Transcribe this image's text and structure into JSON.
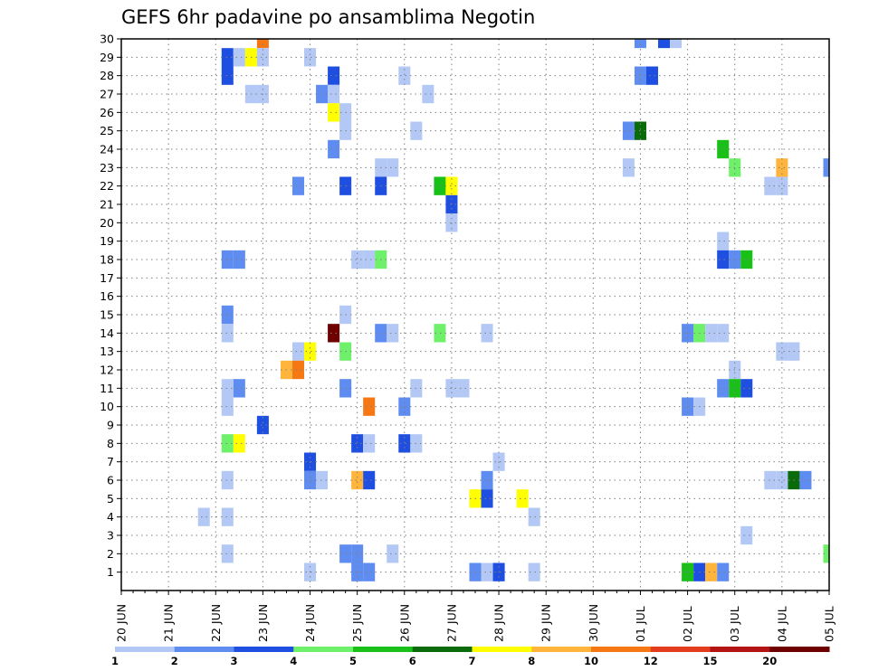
{
  "chart_data": {
    "type": "heatmap",
    "title": "GEFS 6hr padavine po ansamblima Negotin",
    "xlabel": "",
    "ylabel": "",
    "x_tick_labels": [
      "20 JUN",
      "21 JUN",
      "22 JUN",
      "23 JUN",
      "24 JUN",
      "25 JUN",
      "26 JUN",
      "27 JUN",
      "28 JUN",
      "29 JUN",
      "30 JUN",
      "01 JUL",
      "02 JUL",
      "03 JUL",
      "04 JUL",
      "05 JUL"
    ],
    "y_tick_labels": [
      "1",
      "2",
      "3",
      "4",
      "5",
      "6",
      "7",
      "8",
      "9",
      "10",
      "11",
      "12",
      "13",
      "14",
      "15",
      "16",
      "17",
      "18",
      "19",
      "20",
      "21",
      "22",
      "23",
      "24",
      "25",
      "26",
      "27",
      "28",
      "29",
      "30"
    ],
    "ylim": [
      0,
      30
    ],
    "xlim": [
      0,
      60
    ],
    "x_unit": "6-hour steps from 20 JUN 00Z",
    "grid": true,
    "colorbar": {
      "tick_labels": [
        "1",
        "2",
        "3",
        "4",
        "5",
        "6",
        "7",
        "8",
        "10",
        "12",
        "15",
        "20"
      ],
      "colors": [
        "#b4c8f5",
        "#5f8cf0",
        "#1f4fe0",
        "#6ef06a",
        "#18c018",
        "#0a6b0a",
        "#ffff00",
        "#ffb43c",
        "#f57814",
        "#e63c1e",
        "#b41414",
        "#6e0000"
      ]
    },
    "cells": [
      [
        12,
        30,
        "#f57814"
      ],
      [
        44,
        30,
        "#5f8cf0"
      ],
      [
        46,
        30,
        "#1f4fe0"
      ],
      [
        47,
        30,
        "#b4c8f5"
      ],
      [
        9,
        29,
        "#1f4fe0"
      ],
      [
        10,
        29,
        "#b4c8f5"
      ],
      [
        11,
        29,
        "#ffff00"
      ],
      [
        12,
        29,
        "#b4c8f5"
      ],
      [
        16,
        29,
        "#b4c8f5"
      ],
      [
        9,
        28,
        "#1f4fe0"
      ],
      [
        18,
        28,
        "#1f4fe0"
      ],
      [
        24,
        28,
        "#b4c8f5"
      ],
      [
        44,
        28,
        "#5f8cf0"
      ],
      [
        45,
        28,
        "#1f4fe0"
      ],
      [
        11,
        27,
        "#b4c8f5"
      ],
      [
        12,
        27,
        "#b4c8f5"
      ],
      [
        17,
        27,
        "#5f8cf0"
      ],
      [
        18,
        27,
        "#b4c8f5"
      ],
      [
        26,
        27,
        "#b4c8f5"
      ],
      [
        18,
        26,
        "#ffff00"
      ],
      [
        19,
        26,
        "#b4c8f5"
      ],
      [
        19,
        25,
        "#b4c8f5"
      ],
      [
        25,
        25,
        "#b4c8f5"
      ],
      [
        43,
        25,
        "#5f8cf0"
      ],
      [
        44,
        25,
        "#0a6b0a"
      ],
      [
        18,
        24,
        "#5f8cf0"
      ],
      [
        51,
        24,
        "#18c018"
      ],
      [
        22,
        23,
        "#b4c8f5"
      ],
      [
        23,
        23,
        "#b4c8f5"
      ],
      [
        43,
        23,
        "#b4c8f5"
      ],
      [
        52,
        23,
        "#6ef06a"
      ],
      [
        56,
        23,
        "#ffb43c"
      ],
      [
        60,
        23,
        "#5f8cf0"
      ],
      [
        15,
        22,
        "#5f8cf0"
      ],
      [
        19,
        22,
        "#1f4fe0"
      ],
      [
        22,
        22,
        "#1f4fe0"
      ],
      [
        27,
        22,
        "#18c018"
      ],
      [
        28,
        22,
        "#ffff00"
      ],
      [
        55,
        22,
        "#b4c8f5"
      ],
      [
        56,
        22,
        "#b4c8f5"
      ],
      [
        28,
        21,
        "#1f4fe0"
      ],
      [
        28,
        20,
        "#b4c8f5"
      ],
      [
        51,
        19,
        "#b4c8f5"
      ],
      [
        9,
        18,
        "#5f8cf0"
      ],
      [
        10,
        18,
        "#5f8cf0"
      ],
      [
        20,
        18,
        "#b4c8f5"
      ],
      [
        21,
        18,
        "#b4c8f5"
      ],
      [
        22,
        18,
        "#6ef06a"
      ],
      [
        51,
        18,
        "#1f4fe0"
      ],
      [
        52,
        18,
        "#5f8cf0"
      ],
      [
        53,
        18,
        "#18c018"
      ],
      [
        9,
        15,
        "#5f8cf0"
      ],
      [
        19,
        15,
        "#b4c8f5"
      ],
      [
        9,
        14,
        "#b4c8f5"
      ],
      [
        18,
        14,
        "#6e0000"
      ],
      [
        22,
        14,
        "#5f8cf0"
      ],
      [
        23,
        14,
        "#b4c8f5"
      ],
      [
        27,
        14,
        "#6ef06a"
      ],
      [
        31,
        14,
        "#b4c8f5"
      ],
      [
        48,
        14,
        "#5f8cf0"
      ],
      [
        49,
        14,
        "#6ef06a"
      ],
      [
        50,
        14,
        "#b4c8f5"
      ],
      [
        51,
        14,
        "#b4c8f5"
      ],
      [
        15,
        13,
        "#b4c8f5"
      ],
      [
        16,
        13,
        "#ffff00"
      ],
      [
        19,
        13,
        "#6ef06a"
      ],
      [
        56,
        13,
        "#b4c8f5"
      ],
      [
        57,
        13,
        "#b4c8f5"
      ],
      [
        14,
        12,
        "#ffb43c"
      ],
      [
        15,
        12,
        "#f57814"
      ],
      [
        52,
        12,
        "#b4c8f5"
      ],
      [
        9,
        11,
        "#b4c8f5"
      ],
      [
        10,
        11,
        "#5f8cf0"
      ],
      [
        19,
        11,
        "#5f8cf0"
      ],
      [
        25,
        11,
        "#b4c8f5"
      ],
      [
        28,
        11,
        "#b4c8f5"
      ],
      [
        29,
        11,
        "#b4c8f5"
      ],
      [
        51,
        11,
        "#5f8cf0"
      ],
      [
        52,
        11,
        "#18c018"
      ],
      [
        53,
        11,
        "#1f4fe0"
      ],
      [
        9,
        10,
        "#b4c8f5"
      ],
      [
        21,
        10,
        "#f57814"
      ],
      [
        24,
        10,
        "#5f8cf0"
      ],
      [
        48,
        10,
        "#5f8cf0"
      ],
      [
        49,
        10,
        "#b4c8f5"
      ],
      [
        12,
        9,
        "#1f4fe0"
      ],
      [
        9,
        8,
        "#6ef06a"
      ],
      [
        10,
        8,
        "#ffff00"
      ],
      [
        20,
        8,
        "#1f4fe0"
      ],
      [
        21,
        8,
        "#b4c8f5"
      ],
      [
        24,
        8,
        "#1f4fe0"
      ],
      [
        25,
        8,
        "#b4c8f5"
      ],
      [
        16,
        7,
        "#1f4fe0"
      ],
      [
        32,
        7,
        "#b4c8f5"
      ],
      [
        9,
        6,
        "#b4c8f5"
      ],
      [
        16,
        6,
        "#5f8cf0"
      ],
      [
        17,
        6,
        "#b4c8f5"
      ],
      [
        20,
        6,
        "#ffb43c"
      ],
      [
        21,
        6,
        "#1f4fe0"
      ],
      [
        31,
        6,
        "#5f8cf0"
      ],
      [
        55,
        6,
        "#b4c8f5"
      ],
      [
        56,
        6,
        "#b4c8f5"
      ],
      [
        57,
        6,
        "#0a6b0a"
      ],
      [
        58,
        6,
        "#5f8cf0"
      ],
      [
        30,
        5,
        "#ffff00"
      ],
      [
        31,
        5,
        "#1f4fe0"
      ],
      [
        34,
        5,
        "#ffff00"
      ],
      [
        7,
        4,
        "#b4c8f5"
      ],
      [
        9,
        4,
        "#b4c8f5"
      ],
      [
        35,
        4,
        "#b4c8f5"
      ],
      [
        53,
        3,
        "#b4c8f5"
      ],
      [
        9,
        2,
        "#b4c8f5"
      ],
      [
        19,
        2,
        "#5f8cf0"
      ],
      [
        20,
        2,
        "#5f8cf0"
      ],
      [
        23,
        2,
        "#b4c8f5"
      ],
      [
        60,
        2,
        "#6ef06a"
      ],
      [
        16,
        1,
        "#b4c8f5"
      ],
      [
        20,
        1,
        "#5f8cf0"
      ],
      [
        21,
        1,
        "#5f8cf0"
      ],
      [
        30,
        1,
        "#5f8cf0"
      ],
      [
        31,
        1,
        "#b4c8f5"
      ],
      [
        32,
        1,
        "#1f4fe0"
      ],
      [
        35,
        1,
        "#b4c8f5"
      ],
      [
        48,
        1,
        "#18c018"
      ],
      [
        49,
        1,
        "#1f4fe0"
      ],
      [
        50,
        1,
        "#ffb43c"
      ],
      [
        51,
        1,
        "#5f8cf0"
      ]
    ]
  }
}
